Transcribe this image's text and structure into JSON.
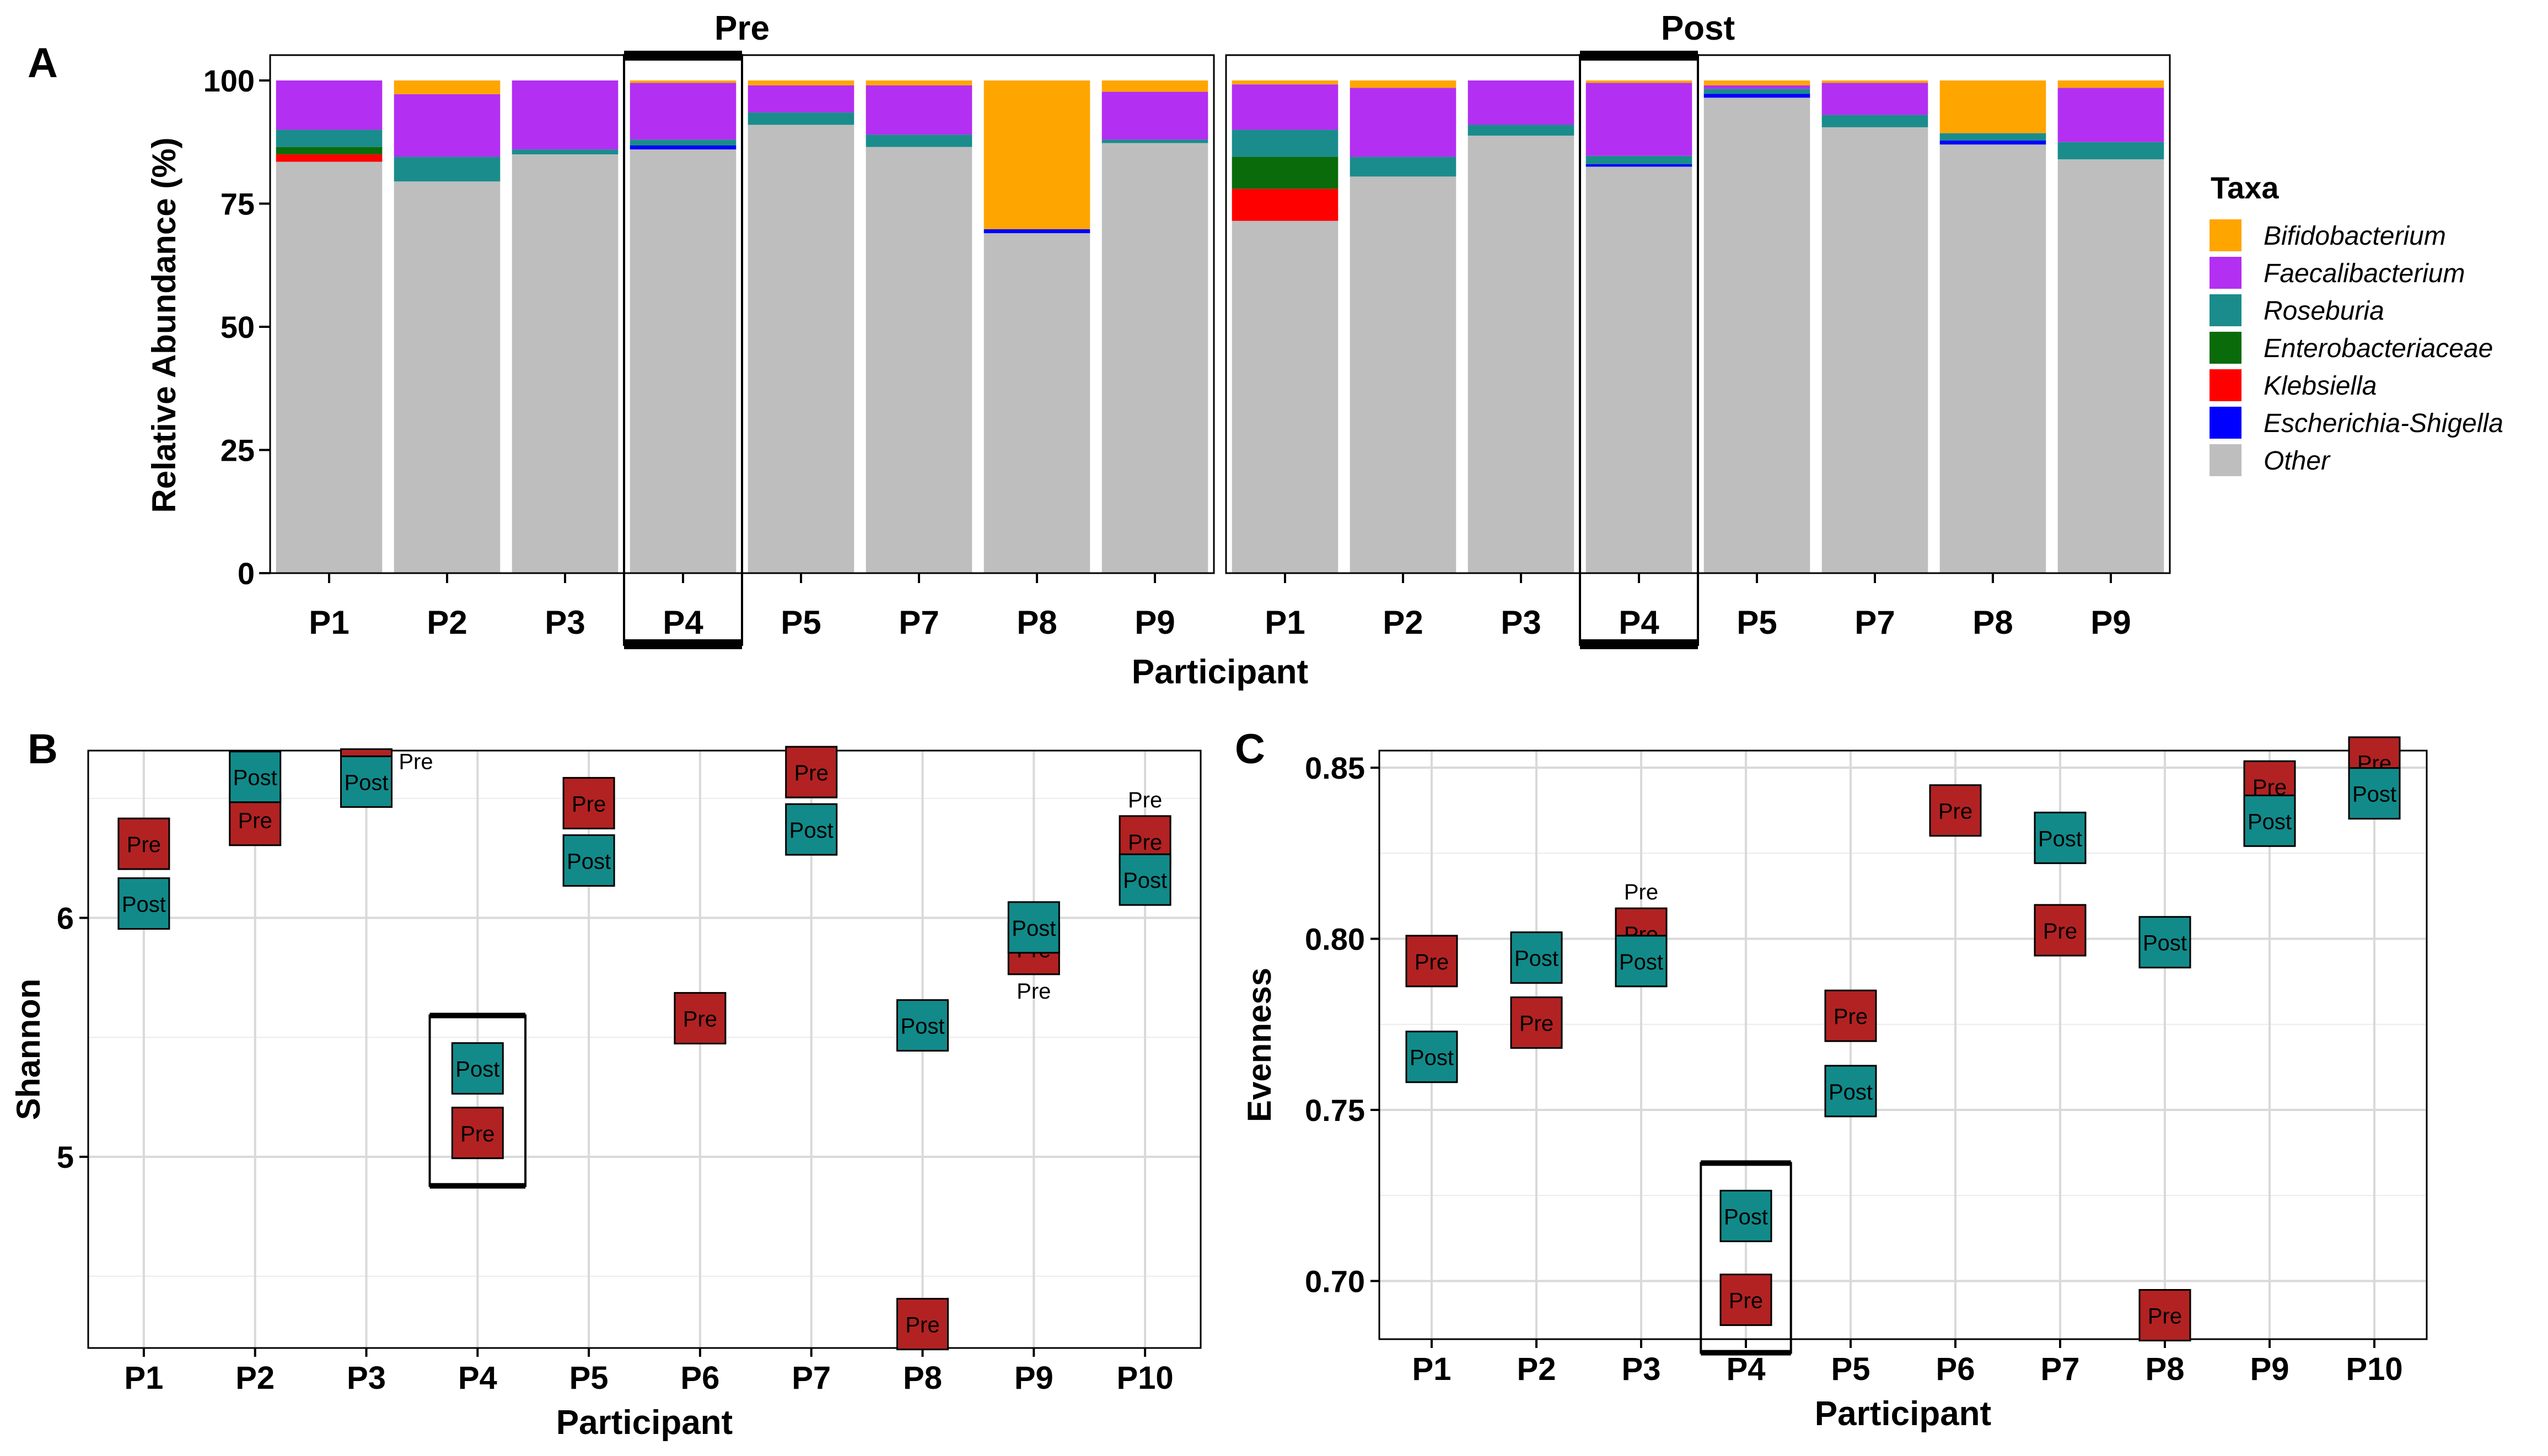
{
  "colors": {
    "Bifidobacterium": "#FFA500",
    "Faecalibacterium": "#B32FF2",
    "Roseburia": "#1A8C8C",
    "Enterobacteriaceae": "#0A6B0A",
    "Klebsiella": "#FF0000",
    "Escherichia-Shigella": "#0000FF",
    "Other": "#BEBEBE",
    "pre_marker": "#B22222",
    "post_marker": "#128A8A"
  },
  "chart_data": [
    {
      "panel": "A",
      "type": "bar",
      "stacked": true,
      "facets": [
        "Pre",
        "Post"
      ],
      "categories": [
        "P1",
        "P2",
        "P3",
        "P4",
        "P5",
        "P7",
        "P8",
        "P9"
      ],
      "highlighted_category": "P4",
      "xlabel": "Participant",
      "ylabel": "Relative Abundance (%)",
      "ylim": [
        0,
        100
      ],
      "yticks": [
        "0",
        "25",
        "50",
        "75",
        "100"
      ],
      "legend_title": "Taxa",
      "legend_position": "right",
      "taxa": [
        "Bifidobacterium",
        "Faecalibacterium",
        "Roseburia",
        "Enterobacteriaceae",
        "Klebsiella",
        "Escherichia-Shigella",
        "Other"
      ],
      "stack_order": [
        "Other",
        "Escherichia-Shigella",
        "Klebsiella",
        "Enterobacteriaceae",
        "Roseburia",
        "Faecalibacterium",
        "Bifidobacterium"
      ],
      "series": {
        "Pre": {
          "Other": [
            83.5,
            79.5,
            85,
            86,
            91,
            86.5,
            69,
            87.3
          ],
          "Escherichia-Shigella": [
            0,
            0,
            0,
            0.8,
            0,
            0,
            0.8,
            0
          ],
          "Klebsiella": [
            1.5,
            0,
            0,
            0,
            0,
            0,
            0,
            0
          ],
          "Enterobacteriaceae": [
            1.5,
            0,
            0,
            0,
            0,
            0,
            0,
            0
          ],
          "Roseburia": [
            3.5,
            5,
            1,
            1.2,
            2.5,
            2.5,
            0,
            0.7
          ],
          "Faecalibacterium": [
            10,
            12.7,
            14,
            11.5,
            5.5,
            10,
            0,
            9.7
          ],
          "Bifidobacterium": [
            0,
            2.8,
            0,
            0.5,
            1,
            1,
            30.2,
            2.3
          ]
        },
        "Post": {
          "Other": [
            71.5,
            80.5,
            88.8,
            82.5,
            96.5,
            90.5,
            87,
            84
          ],
          "Escherichia-Shigella": [
            0,
            0,
            0,
            0.5,
            0.8,
            0,
            0.8,
            0
          ],
          "Klebsiella": [
            6.5,
            0,
            0,
            0,
            0,
            0,
            0,
            0
          ],
          "Enterobacteriaceae": [
            6.5,
            0,
            0,
            0,
            0,
            0,
            0,
            0
          ],
          "Roseburia": [
            5.5,
            4,
            2.2,
            1.7,
            1,
            2.5,
            1.5,
            3.5
          ],
          "Faecalibacterium": [
            9.2,
            14,
            9,
            14.8,
            0.7,
            6.5,
            0,
            11
          ],
          "Bifidobacterium": [
            0.8,
            1.5,
            0,
            0.5,
            1,
            0.5,
            10.7,
            1.5
          ]
        }
      }
    },
    {
      "panel": "B",
      "type": "scatter",
      "categories": [
        "P1",
        "P2",
        "P3",
        "P4",
        "P5",
        "P6",
        "P7",
        "P8",
        "P9",
        "P10"
      ],
      "highlighted_category": "P4",
      "xlabel": "Participant",
      "ylabel": "Shannon",
      "ylim": [
        4.2,
        6.7
      ],
      "yticks": [
        5,
        6
      ],
      "ytick_labels": [
        "5",
        "6"
      ],
      "marker_labels": {
        "pre": "Pre",
        "post": "Post"
      },
      "series": [
        {
          "name": "Pre",
          "values": [
            6.31,
            6.41,
            6.6,
            5.1,
            6.48,
            5.58,
            6.61,
            4.3,
            5.87,
            6.32
          ]
        },
        {
          "name": "Post",
          "values": [
            6.06,
            6.59,
            6.57,
            5.37,
            6.24,
            null,
            6.37,
            5.55,
            5.96,
            6.16
          ]
        }
      ],
      "external_labels": [
        {
          "category": "P3",
          "series": "Pre",
          "text": "Pre"
        },
        {
          "category": "P9",
          "series": "Pre",
          "text": "Pre"
        },
        {
          "category": "P10",
          "series": "Pre",
          "text": "Pre"
        }
      ]
    },
    {
      "panel": "C",
      "type": "scatter",
      "categories": [
        "P1",
        "P2",
        "P3",
        "P4",
        "P5",
        "P6",
        "P7",
        "P8",
        "P9",
        "P10"
      ],
      "highlighted_category": "P4",
      "xlabel": "Participant",
      "ylabel": "Evenness",
      "ylim": [
        0.683,
        0.855
      ],
      "yticks": [
        0.7,
        0.75,
        0.8,
        0.85
      ],
      "ytick_labels": [
        "0.70",
        "0.75",
        "0.80",
        "0.85"
      ],
      "marker_labels": {
        "pre": "Pre",
        "post": "Post"
      },
      "series": [
        {
          "name": "Pre",
          "values": [
            0.7935,
            0.7755,
            0.8015,
            0.6945,
            0.7775,
            0.8375,
            0.8025,
            0.69,
            0.8445,
            0.8515
          ]
        },
        {
          "name": "Post",
          "values": [
            0.7655,
            0.7945,
            0.7935,
            0.719,
            0.7555,
            null,
            0.8295,
            0.799,
            0.8345,
            0.8425
          ]
        }
      ],
      "external_labels": [
        {
          "category": "P3",
          "series": "Pre",
          "text": "Pre"
        }
      ]
    }
  ],
  "panels": {
    "A": {
      "label": "A"
    },
    "B": {
      "label": "B"
    },
    "C": {
      "label": "C"
    }
  }
}
